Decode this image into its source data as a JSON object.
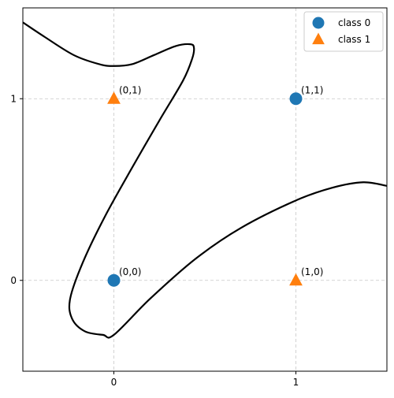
{
  "chart_data": {
    "type": "scatter",
    "title": "",
    "xlabel": "",
    "ylabel": "",
    "xlim": [
      -0.5,
      1.5
    ],
    "ylim": [
      -0.5,
      1.5
    ],
    "xticks": [
      {
        "value": 0,
        "label": "0"
      },
      {
        "value": 1,
        "label": "1"
      }
    ],
    "yticks": [
      {
        "value": 0,
        "label": "0"
      },
      {
        "value": 1,
        "label": "1"
      }
    ],
    "grid": true,
    "legend_position": "top-right",
    "series": [
      {
        "name": "class 0",
        "marker": "circle",
        "color": "#1f77b4",
        "points": [
          {
            "x": 0,
            "y": 0,
            "label": "(0,0)"
          },
          {
            "x": 1,
            "y": 1,
            "label": "(1,1)"
          }
        ]
      },
      {
        "name": "class 1",
        "marker": "triangle",
        "color": "#ff7f0e",
        "points": [
          {
            "x": 0,
            "y": 1,
            "label": "(0,1)"
          },
          {
            "x": 1,
            "y": 0,
            "label": "(1,0)"
          }
        ]
      }
    ],
    "decision_boundary": {
      "color": "#000000",
      "curves": [
        [
          [
            -0.5,
            1.42
          ],
          [
            -0.38,
            1.34
          ],
          [
            -0.22,
            1.24
          ],
          [
            -0.08,
            1.19
          ],
          [
            0.0,
            1.18
          ],
          [
            0.1,
            1.19
          ],
          [
            0.22,
            1.24
          ],
          [
            0.34,
            1.29
          ],
          [
            0.42,
            1.3
          ],
          [
            0.44,
            1.28
          ],
          [
            0.43,
            1.22
          ],
          [
            0.38,
            1.1
          ],
          [
            0.25,
            0.88
          ],
          [
            0.1,
            0.62
          ],
          [
            -0.05,
            0.35
          ],
          [
            -0.17,
            0.1
          ],
          [
            -0.24,
            -0.1
          ],
          [
            -0.23,
            -0.21
          ],
          [
            -0.16,
            -0.28
          ],
          [
            -0.06,
            -0.3
          ],
          [
            0.0,
            -0.3
          ],
          [
            0.2,
            -0.1
          ],
          [
            0.45,
            0.12
          ],
          [
            0.7,
            0.29
          ],
          [
            1.0,
            0.44
          ],
          [
            1.2,
            0.51
          ],
          [
            1.37,
            0.54
          ],
          [
            1.5,
            0.52
          ]
        ]
      ]
    }
  }
}
